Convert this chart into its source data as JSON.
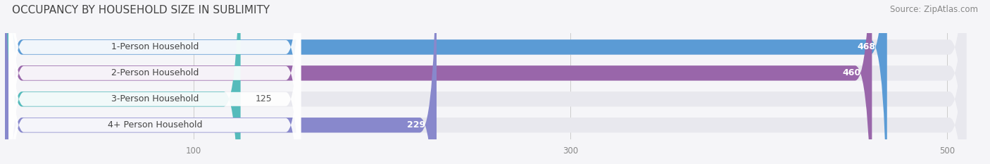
{
  "title": "OCCUPANCY BY HOUSEHOLD SIZE IN SUBLIMITY",
  "source": "Source: ZipAtlas.com",
  "categories": [
    "1-Person Household",
    "2-Person Household",
    "3-Person Household",
    "4+ Person Household"
  ],
  "values": [
    468,
    460,
    125,
    229
  ],
  "bar_colors": [
    "#5b9bd5",
    "#9966aa",
    "#55bbbb",
    "#8888cc"
  ],
  "bar_bg_color": "#e8e8ee",
  "xlim_max": 520,
  "bg_bar_max": 510,
  "xticks": [
    100,
    300,
    500
  ],
  "value_fontsize": 9,
  "cat_fontsize": 9,
  "title_fontsize": 11,
  "source_fontsize": 8.5,
  "title_color": "#444444",
  "source_color": "#888888",
  "label_box_color": "#ffffff",
  "label_text_color": "#444444",
  "background_color": "#f5f5f8"
}
